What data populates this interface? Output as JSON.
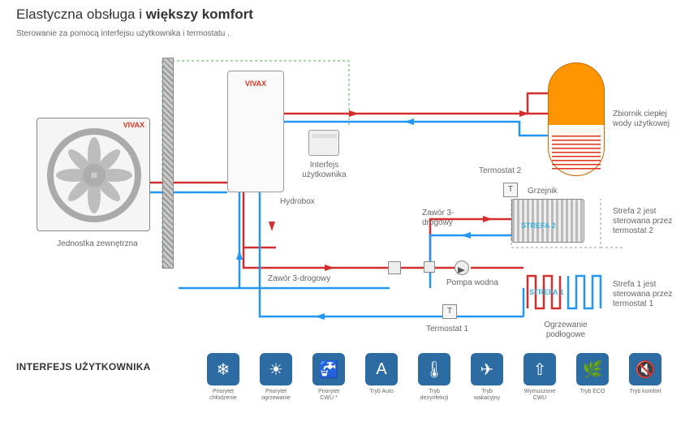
{
  "title_light": "Elastyczna obsługa i ",
  "title_bold": "większy komfort",
  "subtitle": "Sterowanie za pomocą interfejsu użytkownika i termostatu .",
  "brand": "VIVAX",
  "labels": {
    "outdoor": "Jednostka zewnętrzna",
    "hydrobox": "Hydrobox",
    "ui": "Interfejs użytkownika",
    "tank": "Zbiornik ciepłej wody użytkowej",
    "therm1": "Termostat 1",
    "therm2": "Termostat 2",
    "radiator": "Grzejnik",
    "zone2_info": "Strefa 2 jest sterowana przez termostat 2",
    "zone1_info": "Strefa 1 jest sterowana przez termostat 1",
    "valve3a": "Zawór 3-drogowy",
    "valve3b": "Zawór 3-drogowy",
    "pump": "Pompa wodna",
    "floor": "Ogrzewanie podłogowe",
    "zone1": "STREFA 1",
    "zone2": "STREFA 2",
    "t": "T"
  },
  "section": "INTERFEJS UŻYTKOWNIKA",
  "icons": [
    {
      "glyph": "❄",
      "label": "Priorytet chłodzenie"
    },
    {
      "glyph": "☀",
      "label": "Priorytet ogrzewanie"
    },
    {
      "glyph": "🚰",
      "label": "Priorytet CWU *"
    },
    {
      "glyph": "A",
      "label": "Tryb Auto",
      "sub": "Auto"
    },
    {
      "glyph": "🌡",
      "label": "Tryb dezynfekcji"
    },
    {
      "glyph": "✈",
      "label": "Tryb wakacyjny"
    },
    {
      "glyph": "⇧",
      "label": "Wymuszone CWU"
    },
    {
      "glyph": "🌿",
      "label": "Tryb ECO"
    },
    {
      "glyph": "🔇",
      "label": "Tryb komfort"
    }
  ],
  "colors": {
    "hot": "#d32f2f",
    "cold": "#2196f3",
    "dash": "#4caf50",
    "grey": "#999",
    "icon_bg": "#2d6ba3",
    "tank": "#ff9500",
    "accent": "#3bafda"
  }
}
